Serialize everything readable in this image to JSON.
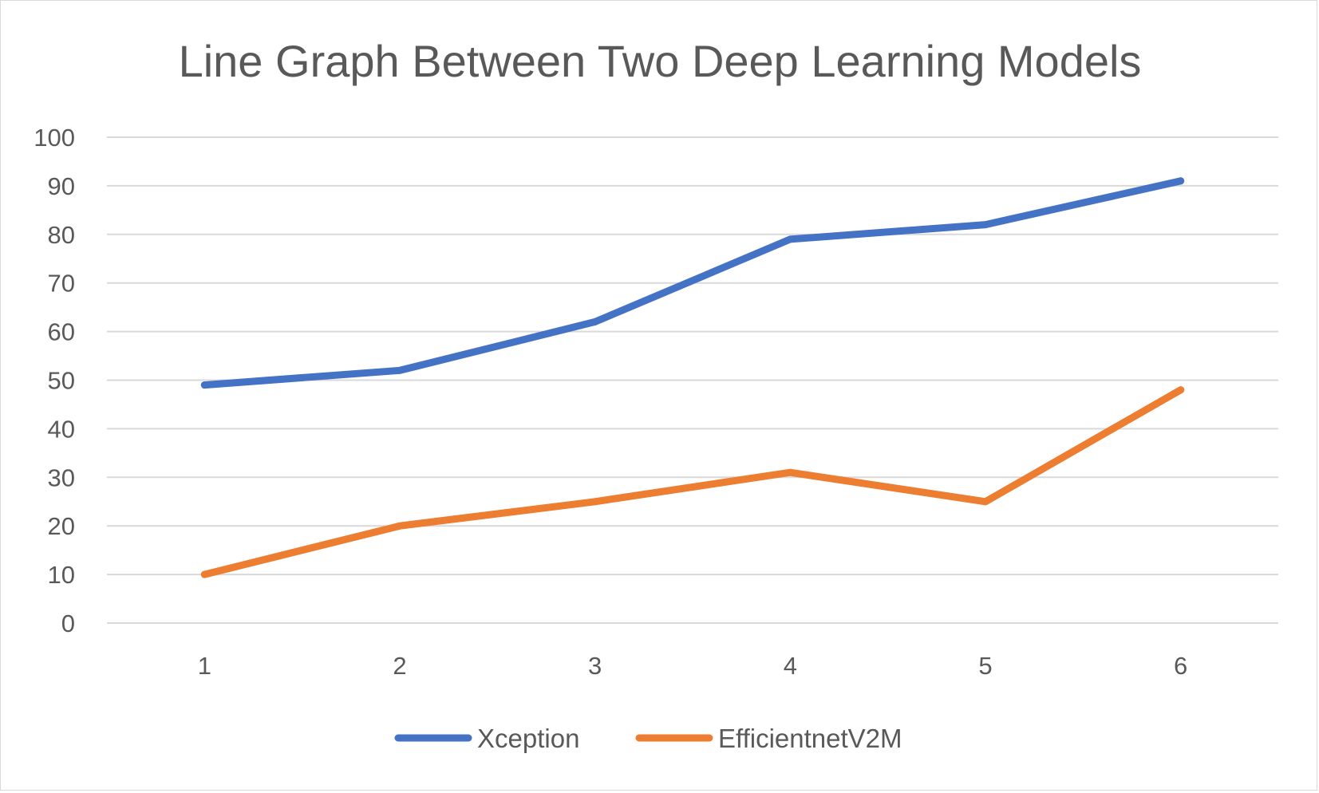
{
  "chart_data": {
    "type": "line",
    "title": "Line Graph Between Two Deep Learning Models",
    "categories": [
      "1",
      "2",
      "3",
      "4",
      "5",
      "6"
    ],
    "ylim": [
      0,
      100
    ],
    "yticks": [
      "0",
      "10",
      "20",
      "30",
      "40",
      "50",
      "60",
      "70",
      "80",
      "90",
      "100"
    ],
    "grid": true,
    "legend_position": "bottom",
    "series": [
      {
        "name": "Xception",
        "color": "#4472c4",
        "values": [
          49,
          52,
          62,
          79,
          82,
          91
        ]
      },
      {
        "name": "EfficientnetV2M",
        "color": "#ed7d31",
        "values": [
          10,
          20,
          25,
          31,
          25,
          48
        ]
      }
    ]
  }
}
